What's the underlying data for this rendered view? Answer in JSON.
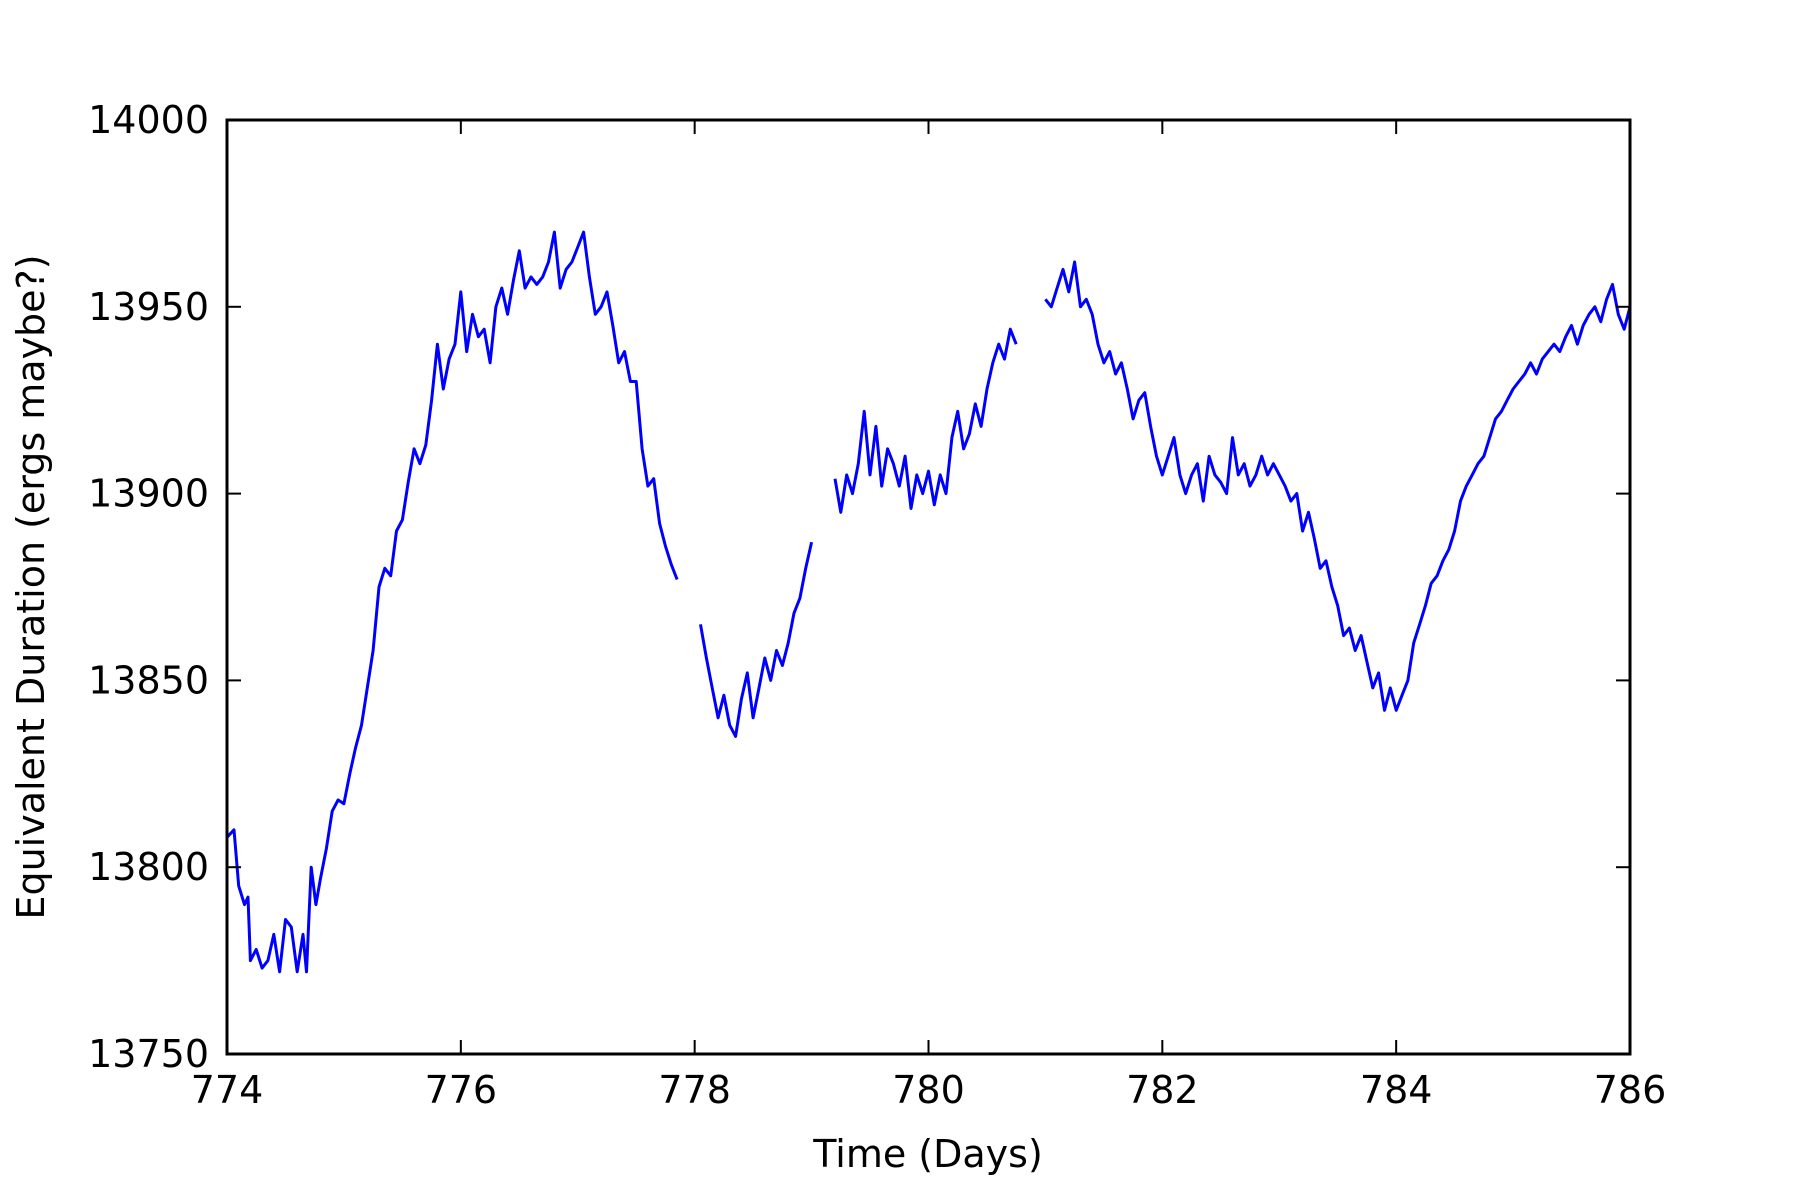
{
  "chart_data": {
    "type": "line",
    "title": "",
    "xlabel": "Time (Days)",
    "ylabel": "Equivalent Duration (ergs maybe?)",
    "xlim": [
      774,
      786
    ],
    "ylim": [
      13750,
      14000
    ],
    "xticks": [
      774,
      776,
      778,
      780,
      782,
      784,
      786
    ],
    "yticks": [
      13750,
      13800,
      13850,
      13900,
      13950,
      14000
    ],
    "grid": false,
    "legend": "none",
    "line_color": "#0000ff",
    "series": [
      {
        "segments": [
          [
            [
              774.0,
              13808
            ],
            [
              774.06,
              13810
            ],
            [
              774.1,
              13795
            ],
            [
              774.15,
              13790
            ],
            [
              774.18,
              13792
            ],
            [
              774.2,
              13775
            ],
            [
              774.25,
              13778
            ],
            [
              774.3,
              13773
            ],
            [
              774.35,
              13775
            ],
            [
              774.4,
              13782
            ],
            [
              774.45,
              13772
            ],
            [
              774.5,
              13786
            ],
            [
              774.55,
              13784
            ],
            [
              774.6,
              13772
            ],
            [
              774.65,
              13782
            ],
            [
              774.68,
              13772
            ],
            [
              774.72,
              13800
            ],
            [
              774.76,
              13790
            ],
            [
              774.8,
              13797
            ],
            [
              774.85,
              13805
            ],
            [
              774.9,
              13815
            ],
            [
              774.95,
              13818
            ],
            [
              775.0,
              13817
            ],
            [
              775.05,
              13825
            ],
            [
              775.1,
              13832
            ],
            [
              775.15,
              13838
            ],
            [
              775.2,
              13848
            ],
            [
              775.25,
              13858
            ],
            [
              775.3,
              13875
            ],
            [
              775.35,
              13880
            ],
            [
              775.4,
              13878
            ],
            [
              775.45,
              13890
            ],
            [
              775.5,
              13893
            ],
            [
              775.55,
              13903
            ],
            [
              775.6,
              13912
            ],
            [
              775.65,
              13908
            ],
            [
              775.7,
              13913
            ],
            [
              775.75,
              13925
            ],
            [
              775.8,
              13940
            ],
            [
              775.85,
              13928
            ],
            [
              775.9,
              13936
            ],
            [
              775.95,
              13940
            ],
            [
              776.0,
              13954
            ],
            [
              776.05,
              13938
            ],
            [
              776.1,
              13948
            ],
            [
              776.15,
              13942
            ],
            [
              776.2,
              13944
            ],
            [
              776.25,
              13935
            ],
            [
              776.3,
              13950
            ],
            [
              776.35,
              13955
            ],
            [
              776.4,
              13948
            ],
            [
              776.45,
              13957
            ],
            [
              776.5,
              13965
            ],
            [
              776.55,
              13955
            ],
            [
              776.6,
              13958
            ],
            [
              776.65,
              13956
            ],
            [
              776.7,
              13958
            ],
            [
              776.75,
              13962
            ],
            [
              776.8,
              13970
            ],
            [
              776.85,
              13955
            ],
            [
              776.9,
              13960
            ],
            [
              776.95,
              13962
            ],
            [
              777.0,
              13966
            ],
            [
              777.05,
              13970
            ],
            [
              777.1,
              13958
            ],
            [
              777.15,
              13948
            ],
            [
              777.2,
              13950
            ],
            [
              777.25,
              13954
            ],
            [
              777.3,
              13945
            ],
            [
              777.35,
              13935
            ],
            [
              777.4,
              13938
            ],
            [
              777.45,
              13930
            ],
            [
              777.5,
              13930
            ],
            [
              777.55,
              13912
            ],
            [
              777.6,
              13902
            ],
            [
              777.65,
              13904
            ],
            [
              777.7,
              13892
            ],
            [
              777.75,
              13886
            ],
            [
              777.8,
              13881
            ],
            [
              777.85,
              13877
            ]
          ],
          [
            [
              778.05,
              13865
            ],
            [
              778.1,
              13856
            ],
            [
              778.15,
              13848
            ],
            [
              778.2,
              13840
            ],
            [
              778.25,
              13846
            ],
            [
              778.3,
              13838
            ],
            [
              778.35,
              13835
            ],
            [
              778.4,
              13845
            ],
            [
              778.45,
              13852
            ],
            [
              778.5,
              13840
            ],
            [
              778.55,
              13848
            ],
            [
              778.6,
              13856
            ],
            [
              778.65,
              13850
            ],
            [
              778.7,
              13858
            ],
            [
              778.75,
              13854
            ],
            [
              778.8,
              13860
            ],
            [
              778.85,
              13868
            ],
            [
              778.9,
              13872
            ],
            [
              778.95,
              13880
            ],
            [
              779.0,
              13887
            ]
          ],
          [
            [
              779.2,
              13904
            ],
            [
              779.25,
              13895
            ],
            [
              779.3,
              13905
            ],
            [
              779.35,
              13900
            ],
            [
              779.4,
              13908
            ],
            [
              779.45,
              13922
            ],
            [
              779.5,
              13905
            ],
            [
              779.55,
              13918
            ],
            [
              779.6,
              13902
            ],
            [
              779.65,
              13912
            ],
            [
              779.7,
              13908
            ],
            [
              779.75,
              13902
            ],
            [
              779.8,
              13910
            ],
            [
              779.85,
              13896
            ],
            [
              779.9,
              13905
            ],
            [
              779.95,
              13900
            ],
            [
              780.0,
              13906
            ],
            [
              780.05,
              13897
            ],
            [
              780.1,
              13905
            ],
            [
              780.15,
              13900
            ],
            [
              780.2,
              13915
            ],
            [
              780.25,
              13922
            ],
            [
              780.3,
              13912
            ],
            [
              780.35,
              13916
            ],
            [
              780.4,
              13924
            ],
            [
              780.45,
              13918
            ],
            [
              780.5,
              13928
            ],
            [
              780.55,
              13935
            ],
            [
              780.6,
              13940
            ],
            [
              780.65,
              13936
            ],
            [
              780.7,
              13944
            ],
            [
              780.75,
              13940
            ]
          ],
          [
            [
              781.0,
              13952
            ],
            [
              781.05,
              13950
            ],
            [
              781.1,
              13955
            ],
            [
              781.15,
              13960
            ],
            [
              781.2,
              13954
            ],
            [
              781.25,
              13962
            ],
            [
              781.3,
              13950
            ],
            [
              781.35,
              13952
            ],
            [
              781.4,
              13948
            ],
            [
              781.45,
              13940
            ],
            [
              781.5,
              13935
            ],
            [
              781.55,
              13938
            ],
            [
              781.6,
              13932
            ],
            [
              781.65,
              13935
            ],
            [
              781.7,
              13928
            ],
            [
              781.75,
              13920
            ],
            [
              781.8,
              13925
            ],
            [
              781.85,
              13927
            ],
            [
              781.9,
              13918
            ],
            [
              781.95,
              13910
            ],
            [
              782.0,
              13905
            ],
            [
              782.05,
              13910
            ],
            [
              782.1,
              13915
            ],
            [
              782.15,
              13905
            ],
            [
              782.2,
              13900
            ],
            [
              782.25,
              13905
            ],
            [
              782.3,
              13908
            ],
            [
              782.35,
              13898
            ],
            [
              782.4,
              13910
            ],
            [
              782.45,
              13905
            ],
            [
              782.5,
              13903
            ],
            [
              782.55,
              13900
            ],
            [
              782.6,
              13915
            ],
            [
              782.65,
              13905
            ],
            [
              782.7,
              13908
            ],
            [
              782.75,
              13902
            ],
            [
              782.8,
              13905
            ],
            [
              782.85,
              13910
            ],
            [
              782.9,
              13905
            ],
            [
              782.95,
              13908
            ],
            [
              783.0,
              13905
            ],
            [
              783.05,
              13902
            ],
            [
              783.1,
              13898
            ],
            [
              783.15,
              13900
            ],
            [
              783.2,
              13890
            ],
            [
              783.25,
              13895
            ],
            [
              783.3,
              13888
            ],
            [
              783.35,
              13880
            ],
            [
              783.4,
              13882
            ],
            [
              783.45,
              13875
            ],
            [
              783.5,
              13870
            ],
            [
              783.55,
              13862
            ],
            [
              783.6,
              13864
            ],
            [
              783.65,
              13858
            ],
            [
              783.7,
              13862
            ],
            [
              783.75,
              13855
            ],
            [
              783.8,
              13848
            ],
            [
              783.85,
              13852
            ],
            [
              783.9,
              13842
            ],
            [
              783.95,
              13848
            ],
            [
              784.0,
              13842
            ],
            [
              784.05,
              13846
            ],
            [
              784.1,
              13850
            ],
            [
              784.15,
              13860
            ],
            [
              784.2,
              13865
            ],
            [
              784.25,
              13870
            ],
            [
              784.3,
              13876
            ],
            [
              784.35,
              13878
            ],
            [
              784.4,
              13882
            ],
            [
              784.45,
              13885
            ],
            [
              784.5,
              13890
            ],
            [
              784.55,
              13898
            ],
            [
              784.6,
              13902
            ],
            [
              784.65,
              13905
            ],
            [
              784.7,
              13908
            ],
            [
              784.75,
              13910
            ],
            [
              784.8,
              13915
            ],
            [
              784.85,
              13920
            ],
            [
              784.9,
              13922
            ],
            [
              784.95,
              13925
            ],
            [
              785.0,
              13928
            ],
            [
              785.05,
              13930
            ],
            [
              785.1,
              13932
            ],
            [
              785.15,
              13935
            ],
            [
              785.2,
              13932
            ],
            [
              785.25,
              13936
            ],
            [
              785.3,
              13938
            ],
            [
              785.35,
              13940
            ],
            [
              785.4,
              13938
            ],
            [
              785.45,
              13942
            ],
            [
              785.5,
              13945
            ],
            [
              785.55,
              13940
            ],
            [
              785.6,
              13945
            ],
            [
              785.65,
              13948
            ],
            [
              785.7,
              13950
            ],
            [
              785.75,
              13946
            ],
            [
              785.8,
              13952
            ],
            [
              785.85,
              13956
            ],
            [
              785.9,
              13948
            ],
            [
              785.95,
              13944
            ],
            [
              786.0,
              13950
            ]
          ]
        ]
      }
    ]
  }
}
